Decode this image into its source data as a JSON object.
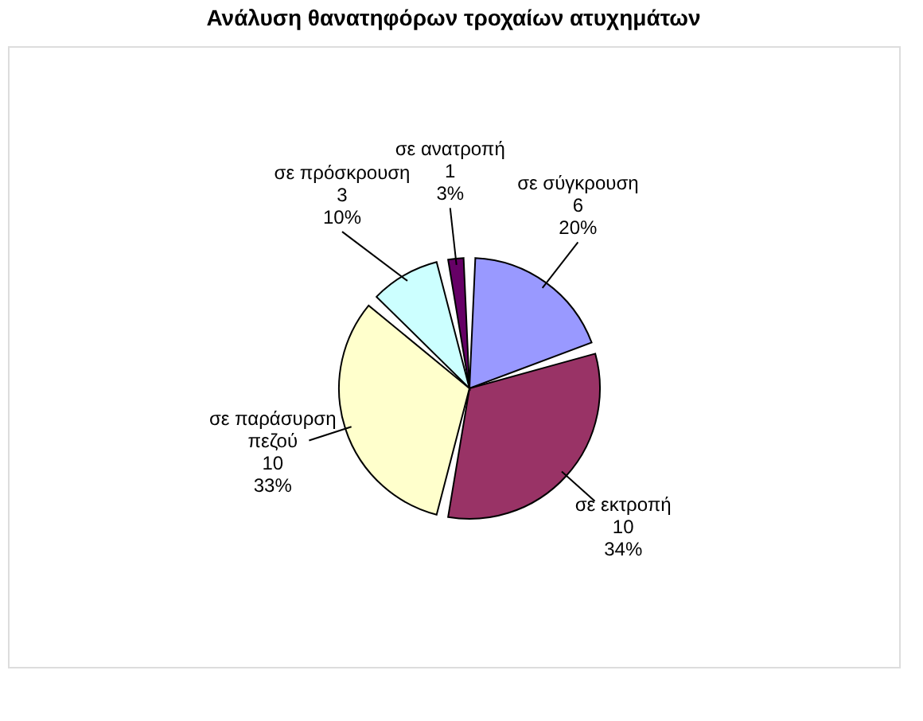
{
  "chart_data": {
    "type": "pie",
    "title": "Ανάλυση θανατηφόρων τροχαίων ατυχημάτων",
    "categories": [
      "σε σύγκρουση",
      "σε εκτροπή",
      "σε παράσυρση πεζού",
      "σε πρόσκρουση",
      "σε ανατροπή"
    ],
    "values": [
      6,
      10,
      10,
      3,
      1
    ],
    "colors": [
      "#9999ff",
      "#993366",
      "#ffffcc",
      "#ccffff",
      "#660066"
    ],
    "value_labels": [
      "6\n20%",
      "10\n34%",
      "10\n33%",
      "3\n10%",
      "1\n3%"
    ],
    "legend": false
  }
}
